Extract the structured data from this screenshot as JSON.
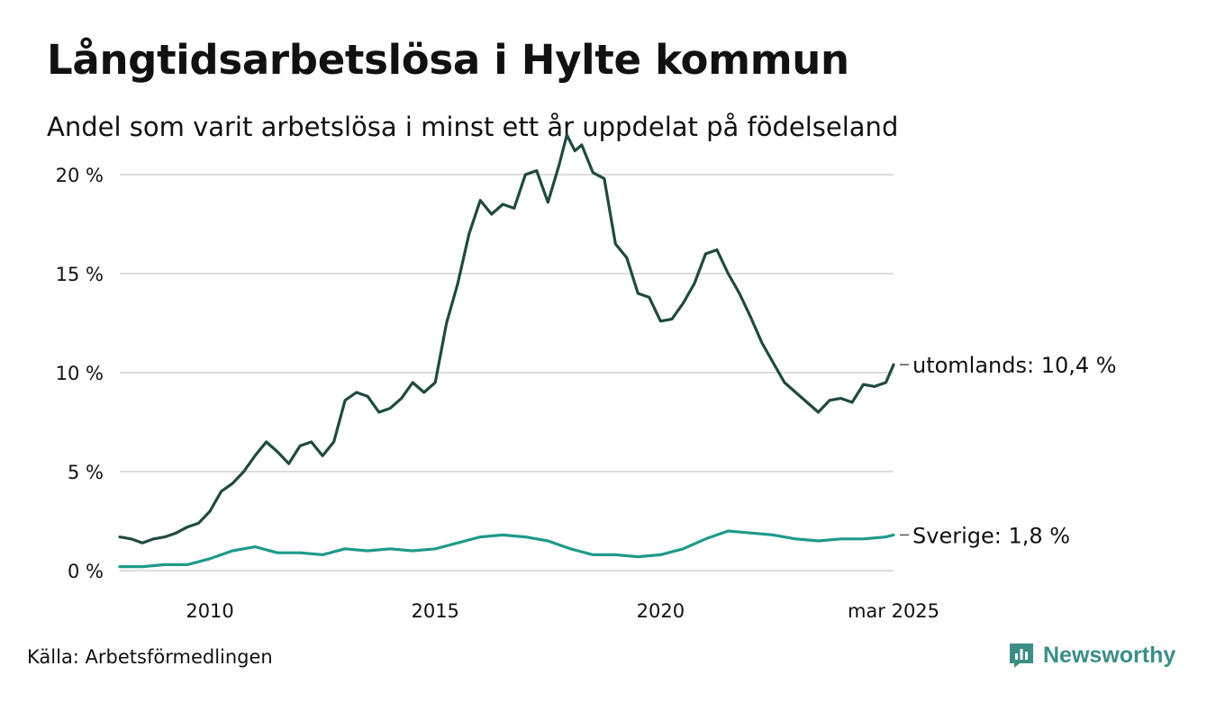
{
  "chart_data": {
    "type": "line",
    "title": "Långtidsarbetslösa i Hylte kommun",
    "subtitle": "Andel som varit arbetslösa i minst ett år uppdelat på födelseland",
    "source": "Källa: Arbetsförmedlingen",
    "xlim": [
      2008.0,
      2025.17
    ],
    "ylim": [
      0,
      22
    ],
    "x_ticks": [
      {
        "value": 2010.0,
        "label": "2010"
      },
      {
        "value": 2015.0,
        "label": "2015"
      },
      {
        "value": 2020.0,
        "label": "2020"
      },
      {
        "value": 2025.17,
        "label": "mar 2025"
      }
    ],
    "y_ticks": [
      {
        "value": 0,
        "label": "0 %"
      },
      {
        "value": 5,
        "label": "5 %"
      },
      {
        "value": 10,
        "label": "10 %"
      },
      {
        "value": 15,
        "label": "15 %"
      },
      {
        "value": 20,
        "label": "20 %"
      }
    ],
    "grid": true,
    "legend": "line-end labels",
    "series": [
      {
        "name": "utomlands",
        "end_label": "utomlands: 10,4 %",
        "color": "#1f4a3f",
        "points": [
          [
            2008.0,
            1.7
          ],
          [
            2008.25,
            1.6
          ],
          [
            2008.5,
            1.4
          ],
          [
            2008.75,
            1.6
          ],
          [
            2009.0,
            1.7
          ],
          [
            2009.25,
            1.9
          ],
          [
            2009.5,
            2.2
          ],
          [
            2009.75,
            2.4
          ],
          [
            2010.0,
            3.0
          ],
          [
            2010.25,
            4.0
          ],
          [
            2010.5,
            4.4
          ],
          [
            2010.75,
            5.0
          ],
          [
            2011.0,
            5.8
          ],
          [
            2011.25,
            6.5
          ],
          [
            2011.5,
            6.0
          ],
          [
            2011.75,
            5.4
          ],
          [
            2012.0,
            6.3
          ],
          [
            2012.25,
            6.5
          ],
          [
            2012.5,
            5.8
          ],
          [
            2012.75,
            6.5
          ],
          [
            2013.0,
            8.6
          ],
          [
            2013.25,
            9.0
          ],
          [
            2013.5,
            8.8
          ],
          [
            2013.75,
            8.0
          ],
          [
            2014.0,
            8.2
          ],
          [
            2014.25,
            8.7
          ],
          [
            2014.5,
            9.5
          ],
          [
            2014.75,
            9.0
          ],
          [
            2015.0,
            9.5
          ],
          [
            2015.25,
            12.5
          ],
          [
            2015.5,
            14.5
          ],
          [
            2015.75,
            17.0
          ],
          [
            2016.0,
            18.7
          ],
          [
            2016.25,
            18.0
          ],
          [
            2016.5,
            18.5
          ],
          [
            2016.75,
            18.3
          ],
          [
            2017.0,
            20.0
          ],
          [
            2017.25,
            20.2
          ],
          [
            2017.5,
            18.6
          ],
          [
            2017.75,
            20.5
          ],
          [
            2017.92,
            22.0
          ],
          [
            2018.1,
            21.2
          ],
          [
            2018.25,
            21.5
          ],
          [
            2018.5,
            20.1
          ],
          [
            2018.75,
            19.8
          ],
          [
            2019.0,
            16.5
          ],
          [
            2019.25,
            15.8
          ],
          [
            2019.5,
            14.0
          ],
          [
            2019.75,
            13.8
          ],
          [
            2020.0,
            12.6
          ],
          [
            2020.25,
            12.7
          ],
          [
            2020.5,
            13.5
          ],
          [
            2020.75,
            14.5
          ],
          [
            2021.0,
            16.0
          ],
          [
            2021.25,
            16.2
          ],
          [
            2021.5,
            15.0
          ],
          [
            2021.75,
            14.0
          ],
          [
            2022.0,
            12.8
          ],
          [
            2022.25,
            11.5
          ],
          [
            2022.5,
            10.5
          ],
          [
            2022.75,
            9.5
          ],
          [
            2023.0,
            9.0
          ],
          [
            2023.25,
            8.5
          ],
          [
            2023.5,
            8.0
          ],
          [
            2023.75,
            8.6
          ],
          [
            2024.0,
            8.7
          ],
          [
            2024.25,
            8.5
          ],
          [
            2024.5,
            9.4
          ],
          [
            2024.75,
            9.3
          ],
          [
            2025.0,
            9.5
          ],
          [
            2025.17,
            10.4
          ]
        ]
      },
      {
        "name": "Sverige",
        "end_label": "Sverige:  1,8 %",
        "color": "#1f9a8a",
        "points": [
          [
            2008.0,
            0.2
          ],
          [
            2008.5,
            0.2
          ],
          [
            2009.0,
            0.3
          ],
          [
            2009.5,
            0.3
          ],
          [
            2010.0,
            0.6
          ],
          [
            2010.5,
            1.0
          ],
          [
            2011.0,
            1.2
          ],
          [
            2011.5,
            0.9
          ],
          [
            2012.0,
            0.9
          ],
          [
            2012.5,
            0.8
          ],
          [
            2013.0,
            1.1
          ],
          [
            2013.5,
            1.0
          ],
          [
            2014.0,
            1.1
          ],
          [
            2014.5,
            1.0
          ],
          [
            2015.0,
            1.1
          ],
          [
            2015.5,
            1.4
          ],
          [
            2016.0,
            1.7
          ],
          [
            2016.5,
            1.8
          ],
          [
            2017.0,
            1.7
          ],
          [
            2017.5,
            1.5
          ],
          [
            2018.0,
            1.1
          ],
          [
            2018.5,
            0.8
          ],
          [
            2019.0,
            0.8
          ],
          [
            2019.5,
            0.7
          ],
          [
            2020.0,
            0.8
          ],
          [
            2020.5,
            1.1
          ],
          [
            2021.0,
            1.6
          ],
          [
            2021.5,
            2.0
          ],
          [
            2022.0,
            1.9
          ],
          [
            2022.5,
            1.8
          ],
          [
            2023.0,
            1.6
          ],
          [
            2023.5,
            1.5
          ],
          [
            2024.0,
            1.6
          ],
          [
            2024.5,
            1.6
          ],
          [
            2025.0,
            1.7
          ],
          [
            2025.17,
            1.8
          ]
        ]
      }
    ]
  },
  "brand": {
    "name": "Newsworthy",
    "icon": "newsworthy-logo-icon",
    "color": "#3b8e86"
  }
}
